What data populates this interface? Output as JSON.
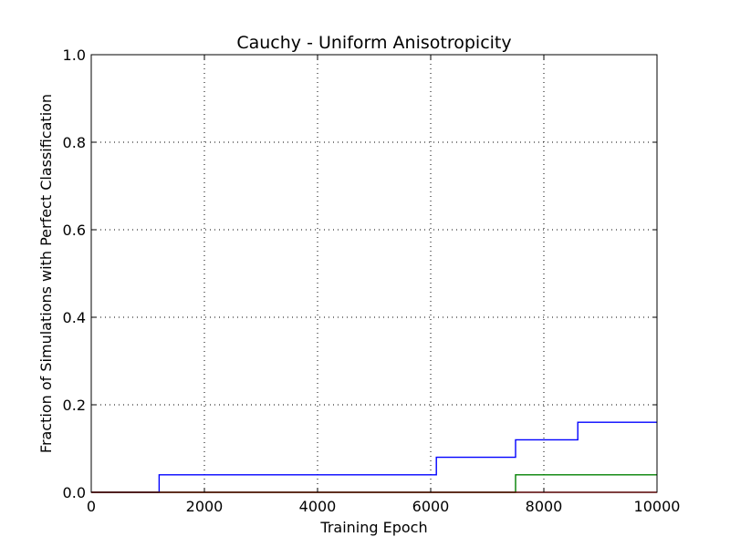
{
  "chart_data": {
    "type": "line",
    "title": "Cauchy - Uniform Anisotropicity",
    "xlabel": "Training Epoch",
    "ylabel": "Fraction of Simulations with Perfect Classification",
    "xlim": [
      0,
      10000
    ],
    "ylim": [
      0.0,
      1.0
    ],
    "x_ticks": [
      0,
      2000,
      4000,
      6000,
      8000,
      10000
    ],
    "x_tick_labels": [
      "0",
      "2000",
      "4000",
      "6000",
      "8000",
      "10000"
    ],
    "y_ticks": [
      0.0,
      0.2,
      0.4,
      0.6,
      0.8,
      1.0
    ],
    "y_tick_labels": [
      "0.0",
      "0.2",
      "0.4",
      "0.6",
      "0.8",
      "1.0"
    ],
    "grid": true,
    "line_style": "steps-post",
    "series": [
      {
        "color": "#0000ff",
        "x": [
          0,
          1200,
          6100,
          7500,
          8600,
          10000
        ],
        "y": [
          0.0,
          0.04,
          0.08,
          0.12,
          0.16,
          0.16
        ]
      },
      {
        "color": "#008000",
        "x": [
          0,
          7500,
          10000
        ],
        "y": [
          0.0,
          0.04,
          0.04
        ]
      },
      {
        "color": "#ff0000",
        "x": [
          0,
          10000
        ],
        "y": [
          0.0,
          0.0
        ]
      }
    ]
  }
}
